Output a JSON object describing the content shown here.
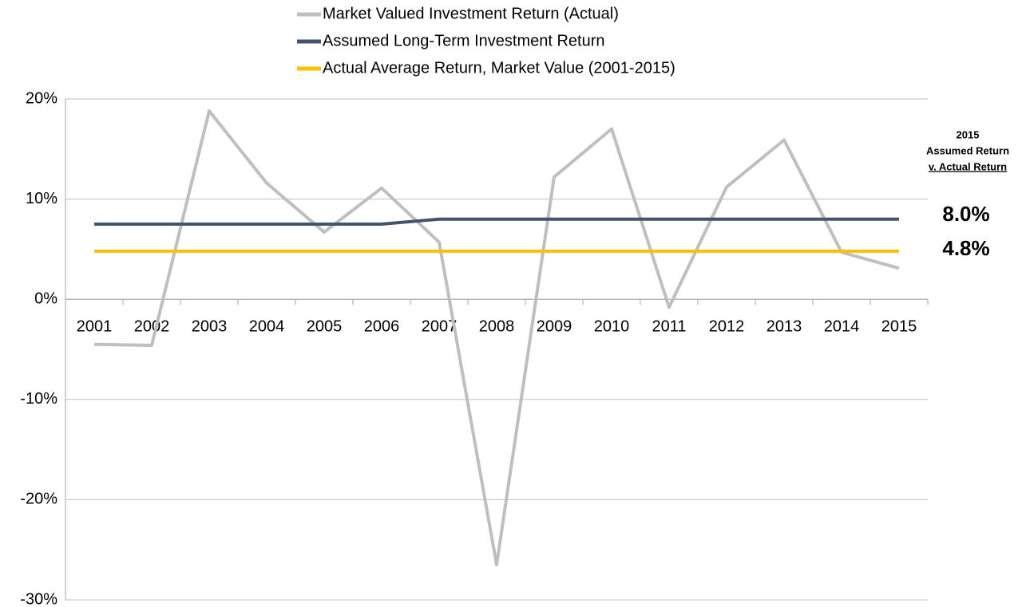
{
  "chart_data": {
    "type": "line",
    "categories": [
      "2001",
      "2002",
      "2003",
      "2004",
      "2005",
      "2006",
      "2007",
      "2008",
      "2009",
      "2010",
      "2011",
      "2012",
      "2013",
      "2014",
      "2015"
    ],
    "series": [
      {
        "name": "Market Valued Investment Return (Actual)",
        "color": "#bfbfbf",
        "values": [
          -4.5,
          -4.6,
          18.8,
          11.6,
          6.7,
          11.1,
          5.7,
          -26.5,
          12.2,
          17.0,
          -0.8,
          11.2,
          15.9,
          4.7,
          3.1
        ]
      },
      {
        "name": "Assumed Long-Term Investment Return",
        "color": "#44546a",
        "values": [
          7.5,
          7.5,
          7.5,
          7.5,
          7.5,
          7.5,
          8.0,
          8.0,
          8.0,
          8.0,
          8.0,
          8.0,
          8.0,
          8.0,
          8.0
        ]
      },
      {
        "name": "Actual Average Return, Market Value (2001-2015)",
        "color": "#ffc000",
        "values": [
          4.8,
          4.8,
          4.8,
          4.8,
          4.8,
          4.8,
          4.8,
          4.8,
          4.8,
          4.8,
          4.8,
          4.8,
          4.8,
          4.8,
          4.8
        ]
      }
    ],
    "ylim": [
      -30,
      20
    ],
    "yticks": [
      {
        "value": -30,
        "label": "-30%"
      },
      {
        "value": -20,
        "label": "-20%"
      },
      {
        "value": -10,
        "label": "-10%"
      },
      {
        "value": 0,
        "label": "0%"
      },
      {
        "value": 10,
        "label": "10%"
      },
      {
        "value": 20,
        "label": "20%"
      }
    ],
    "grid": true,
    "legend": "top",
    "annotations": {
      "heading": [
        "2015",
        "Assumed Return",
        "v. Actual Return"
      ],
      "assumed": "8.0%",
      "actual": "4.8%"
    }
  }
}
